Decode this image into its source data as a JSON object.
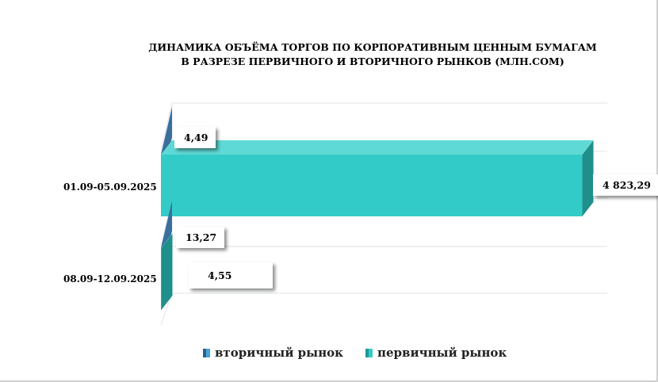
{
  "chart_data": {
    "type": "bar",
    "orientation": "horizontal",
    "three_d": true,
    "title": "ДИНАМИКА ОБЪЁМА ТОРГОВ ПО КОРПОРАТИВНЫМ ЦЕННЫМ БУМАГАМ",
    "subtitle": "В РАЗРЕЗЕ ПЕРВИЧНОГО И ВТОРИЧНОГО РЫНКОВ  (МЛН.СОМ)",
    "categories": [
      "01.09-05.09.2025",
      "08.09-12.09.2025"
    ],
    "series": [
      {
        "name": "вторичный рынок",
        "color": "#3a6f9a",
        "values": [
          4.49,
          13.27
        ]
      },
      {
        "name": "первичный рынок",
        "color": "#33cbc8",
        "values": [
          4823.29,
          4.55
        ]
      }
    ],
    "data_labels": [
      [
        "4,49",
        "13,27"
      ],
      [
        "4 823,29",
        "4,55"
      ]
    ],
    "legend_position": "bottom",
    "grid": true,
    "xlim": [
      0,
      5000
    ]
  }
}
